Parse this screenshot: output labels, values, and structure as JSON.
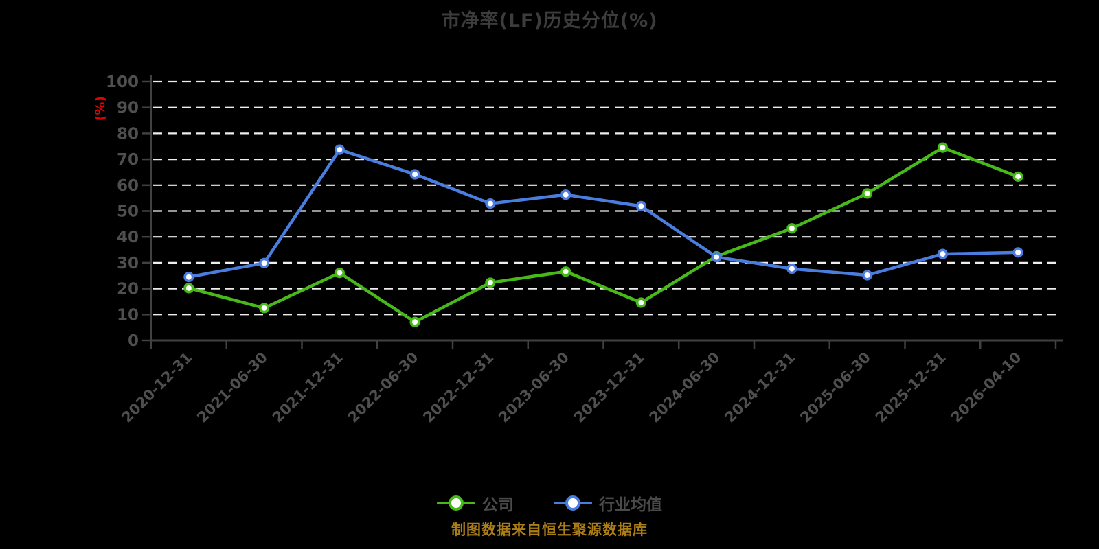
{
  "title": "市净率(LF)历史分位(%)",
  "y_axis_label": "(%)",
  "footer": "制图数据来自恒生聚源数据库",
  "colors": {
    "background": "#000000",
    "title_text": "#3c3c3c",
    "axis": "#414141",
    "tick_label": "#4f4f4f",
    "gridline": "#eeeeee",
    "y_unit_label": "#e30000",
    "footer_text": "#ab7e18",
    "company_series": "#47b918",
    "industry_series": "#4a7dde"
  },
  "chart_data": {
    "type": "line",
    "title": "市净率(LF)历史分位(%)",
    "ylabel": "(%)",
    "xlabel": "",
    "ylim": [
      0,
      100
    ],
    "yticks": [
      0,
      10,
      20,
      30,
      40,
      50,
      60,
      70,
      80,
      90,
      100
    ],
    "grid": "horizontal-dashed",
    "legend_position": "bottom",
    "categories": [
      "2020-12-31",
      "2021-06-30",
      "2021-12-31",
      "2022-06-30",
      "2022-12-31",
      "2023-06-30",
      "2023-12-31",
      "2024-06-30",
      "2024-12-31",
      "2025-06-30",
      "2025-12-31",
      "2026-04-10"
    ],
    "series": [
      {
        "name": "公司",
        "slug": "company",
        "color": "#47b918",
        "values": [
          20.2,
          12.5,
          26.1,
          7.1,
          22.3,
          26.6,
          14.6,
          32.5,
          43.3,
          56.8,
          74.5,
          63.3
        ]
      },
      {
        "name": "行业均值",
        "slug": "industry-average",
        "color": "#4a7dde",
        "values": [
          24.5,
          29.9,
          73.7,
          64.2,
          52.9,
          56.3,
          51.9,
          32.2,
          27.7,
          25.2,
          33.4,
          34.0
        ]
      }
    ]
  }
}
